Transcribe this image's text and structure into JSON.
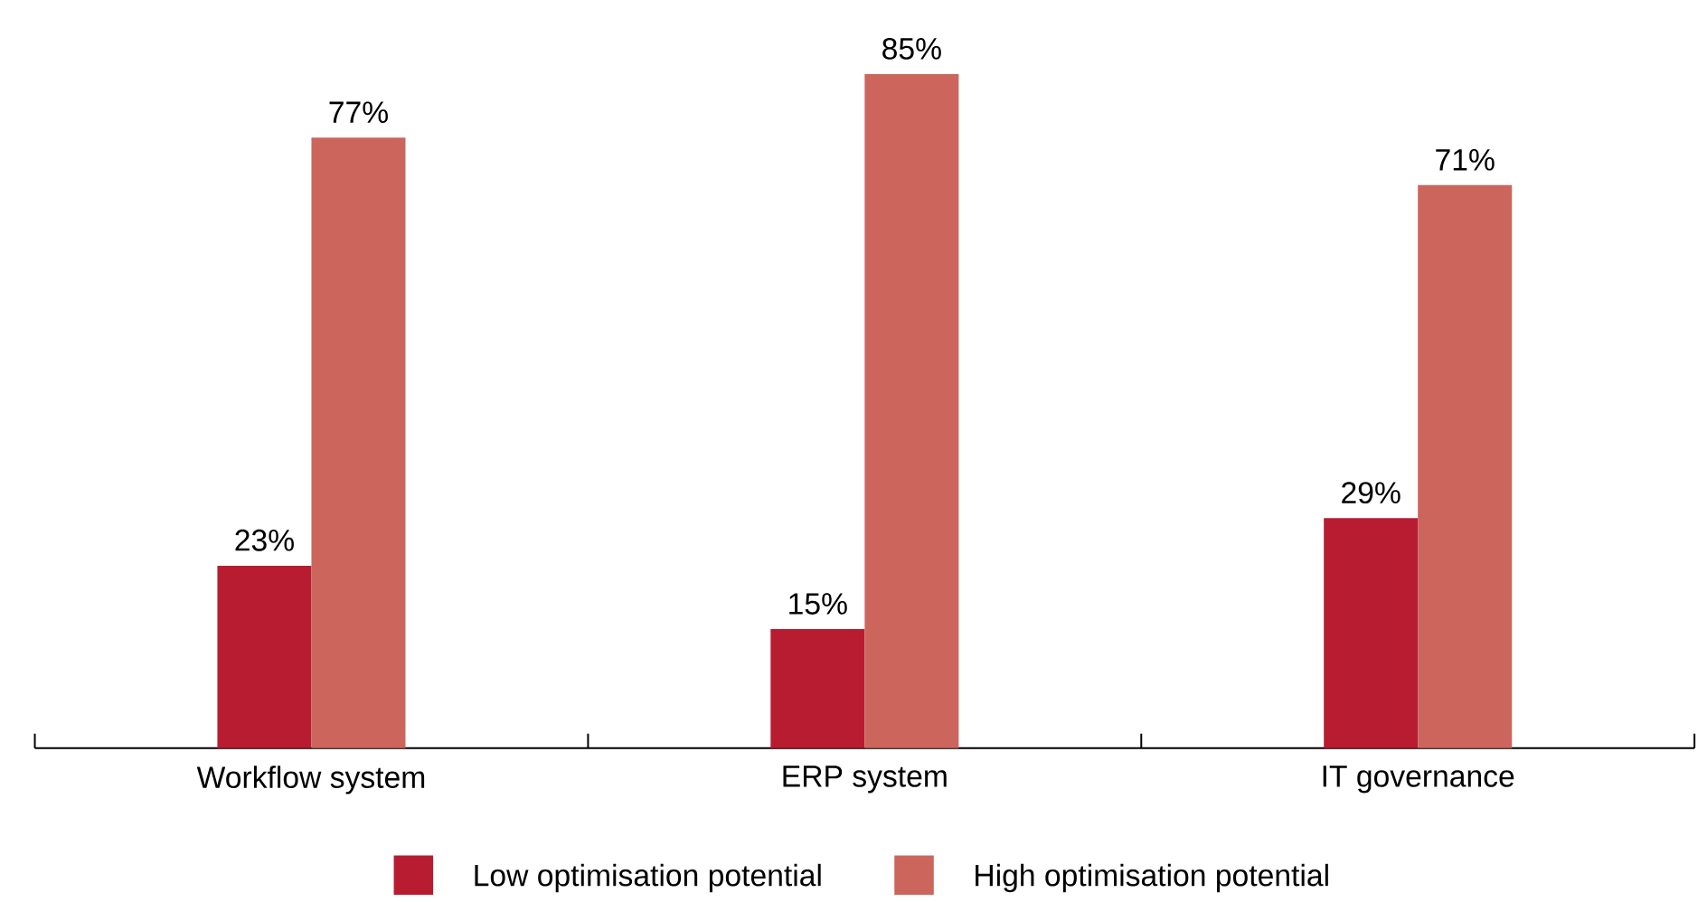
{
  "chart_data": {
    "type": "bar",
    "categories": [
      "Workflow system",
      "ERP system",
      "IT governance"
    ],
    "series": [
      {
        "name": "Low optimisation potential",
        "color": "#b81c30",
        "values": [
          23,
          15,
          29
        ],
        "value_labels": [
          "23%",
          "15%",
          "29%"
        ]
      },
      {
        "name": "High optimisation potential",
        "color": "#cc665c",
        "values": [
          77,
          85,
          71
        ],
        "value_labels": [
          "77%",
          "85%",
          "71%"
        ]
      }
    ],
    "legend": "bottom"
  }
}
